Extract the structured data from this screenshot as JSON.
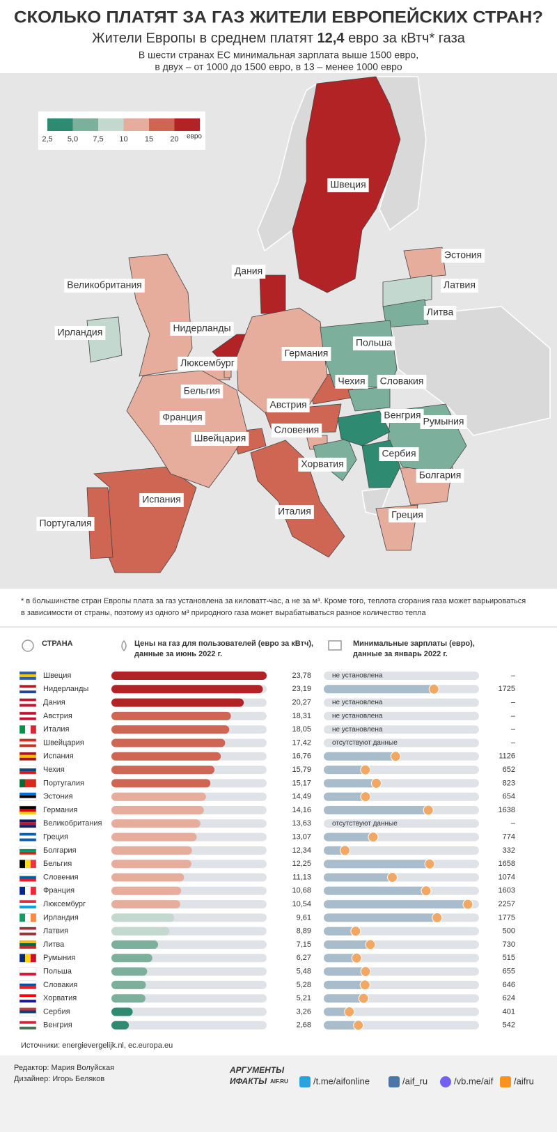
{
  "header": {
    "title": "СКОЛЬКО ПЛАТЯТ ЗА ГАЗ ЖИТЕЛИ ЕВРОПЕЙСКИХ СТРАН?",
    "subtitle": [
      "Жители Европы в среднем платят",
      "12,4",
      "евро за кВтч* газа"
    ],
    "intro": [
      "В шести странах ЕС минимальная зарплата выше 1500 евро,",
      "в двух – от 1000 до 1500 евро, в 13 – менее 1000 евро"
    ]
  },
  "legend": {
    "ticks": [
      {
        "value": 2.5,
        "label": "2,5"
      },
      {
        "value": 5,
        "label": "5,0"
      },
      {
        "value": 7.5,
        "label": "7,5"
      },
      10,
      15,
      20
    ],
    "colors": [
      "#2e8a70",
      "#7cb09c",
      "#c3d9d0",
      "#e7ad9c",
      "#cf6553",
      "#b22326"
    ],
    "unit": "евро"
  },
  "footnote": [
    "* в большинстве стран Европы плата за газ установлена за киловатт-час, а не за м³. Кроме того, теплота сгорания газа может варьироваться",
    "в зависимости от страны, поэтому из одного м³ природного газа может вырабатываться разное количество тепла"
  ],
  "chart_data": [
    {
      "type": "bar",
      "orientation": "horizontal",
      "category_header": "СТРАНА",
      "title": [
        "Цены на газ для пользователей (евро за кВтч),",
        "данные за июнь 2022 г."
      ],
      "categories": [
        "Швеция",
        "Нидерланды",
        "Дания",
        "Австрия",
        "Италия",
        "Швейцария",
        "Испания",
        "Чехия",
        "Португалия",
        "Эстония",
        "Германия",
        "Великобритания",
        "Греция",
        "Болгария",
        "Бельгия",
        "Словения",
        "Франция",
        "Люксембург",
        "Ирландия",
        "Латвия",
        "Литва",
        "Румыния",
        "Польша",
        "Словакия",
        "Хорватия",
        "Сербия",
        "Венгрия"
      ],
      "values": [
        23.78,
        23.19,
        20.27,
        18.31,
        18.05,
        17.42,
        16.76,
        15.79,
        15.17,
        14.49,
        14.16,
        13.63,
        13.07,
        12.34,
        12.25,
        11.13,
        10.68,
        10.54,
        9.61,
        8.89,
        7.15,
        6.27,
        5.48,
        5.28,
        5.21,
        3.26,
        2.68
      ],
      "value_labels": [
        "23,78",
        "23,19",
        "20,27",
        "18,31",
        "18,05",
        "17,42",
        "16,76",
        "15,79",
        "15,17",
        "14,49",
        "14,16",
        "13,63",
        "13,07",
        "12,34",
        "12,25",
        "11,13",
        "10,68",
        "10,54",
        "9,61",
        "8,89",
        "7,15",
        "6,27",
        "5,48",
        "5,28",
        "5,21",
        "3,26",
        "2,68"
      ],
      "track_color": "#dfe3e8"
    },
    {
      "type": "lollipop",
      "orientation": "horizontal",
      "title": [
        "Минимальные зарплаты (евро),",
        "данные за январь 2022 г."
      ],
      "values": [
        null,
        1725,
        null,
        null,
        null,
        null,
        1126,
        652,
        823,
        654,
        1638,
        null,
        774,
        332,
        1658,
        1074,
        1603,
        2257,
        1775,
        500,
        730,
        515,
        655,
        646,
        624,
        401,
        542
      ],
      "value_labels": [
        "–",
        "1725",
        "–",
        "–",
        "–",
        "–",
        "1126",
        "652",
        "823",
        "654",
        "1638",
        "–",
        "774",
        "332",
        "1658",
        "1074",
        "1603",
        "2257",
        "1775",
        "500",
        "730",
        "515",
        "655",
        "646",
        "624",
        "401",
        "542"
      ],
      "status_labels": [
        "не установлена",
        null,
        "не установлена",
        "не установлена",
        "не установлена",
        "отсутствуют данные",
        null,
        null,
        null,
        null,
        null,
        "отсутствуют данные",
        null,
        null,
        null,
        null,
        null,
        null,
        null,
        null,
        null,
        null,
        null,
        null,
        null,
        null,
        null
      ],
      "color": "#a8bccc",
      "marker_color": "#f2a865",
      "track_color": "#dfe3e8"
    }
  ],
  "sources": "Источники: energievergelijk.nl, ec.europa.eu",
  "footer": {
    "credits": [
      "Редактор: Мария Волуйская",
      "Дизайнер: Игорь Беляков"
    ],
    "logo": [
      "АРГУМЕНТЫ",
      "ИФАКТЫ",
      "AIF.RU"
    ],
    "links": [
      "/t.me/aifonline",
      "/aif_ru",
      "/vb.me/aif",
      "/aifru"
    ]
  }
}
